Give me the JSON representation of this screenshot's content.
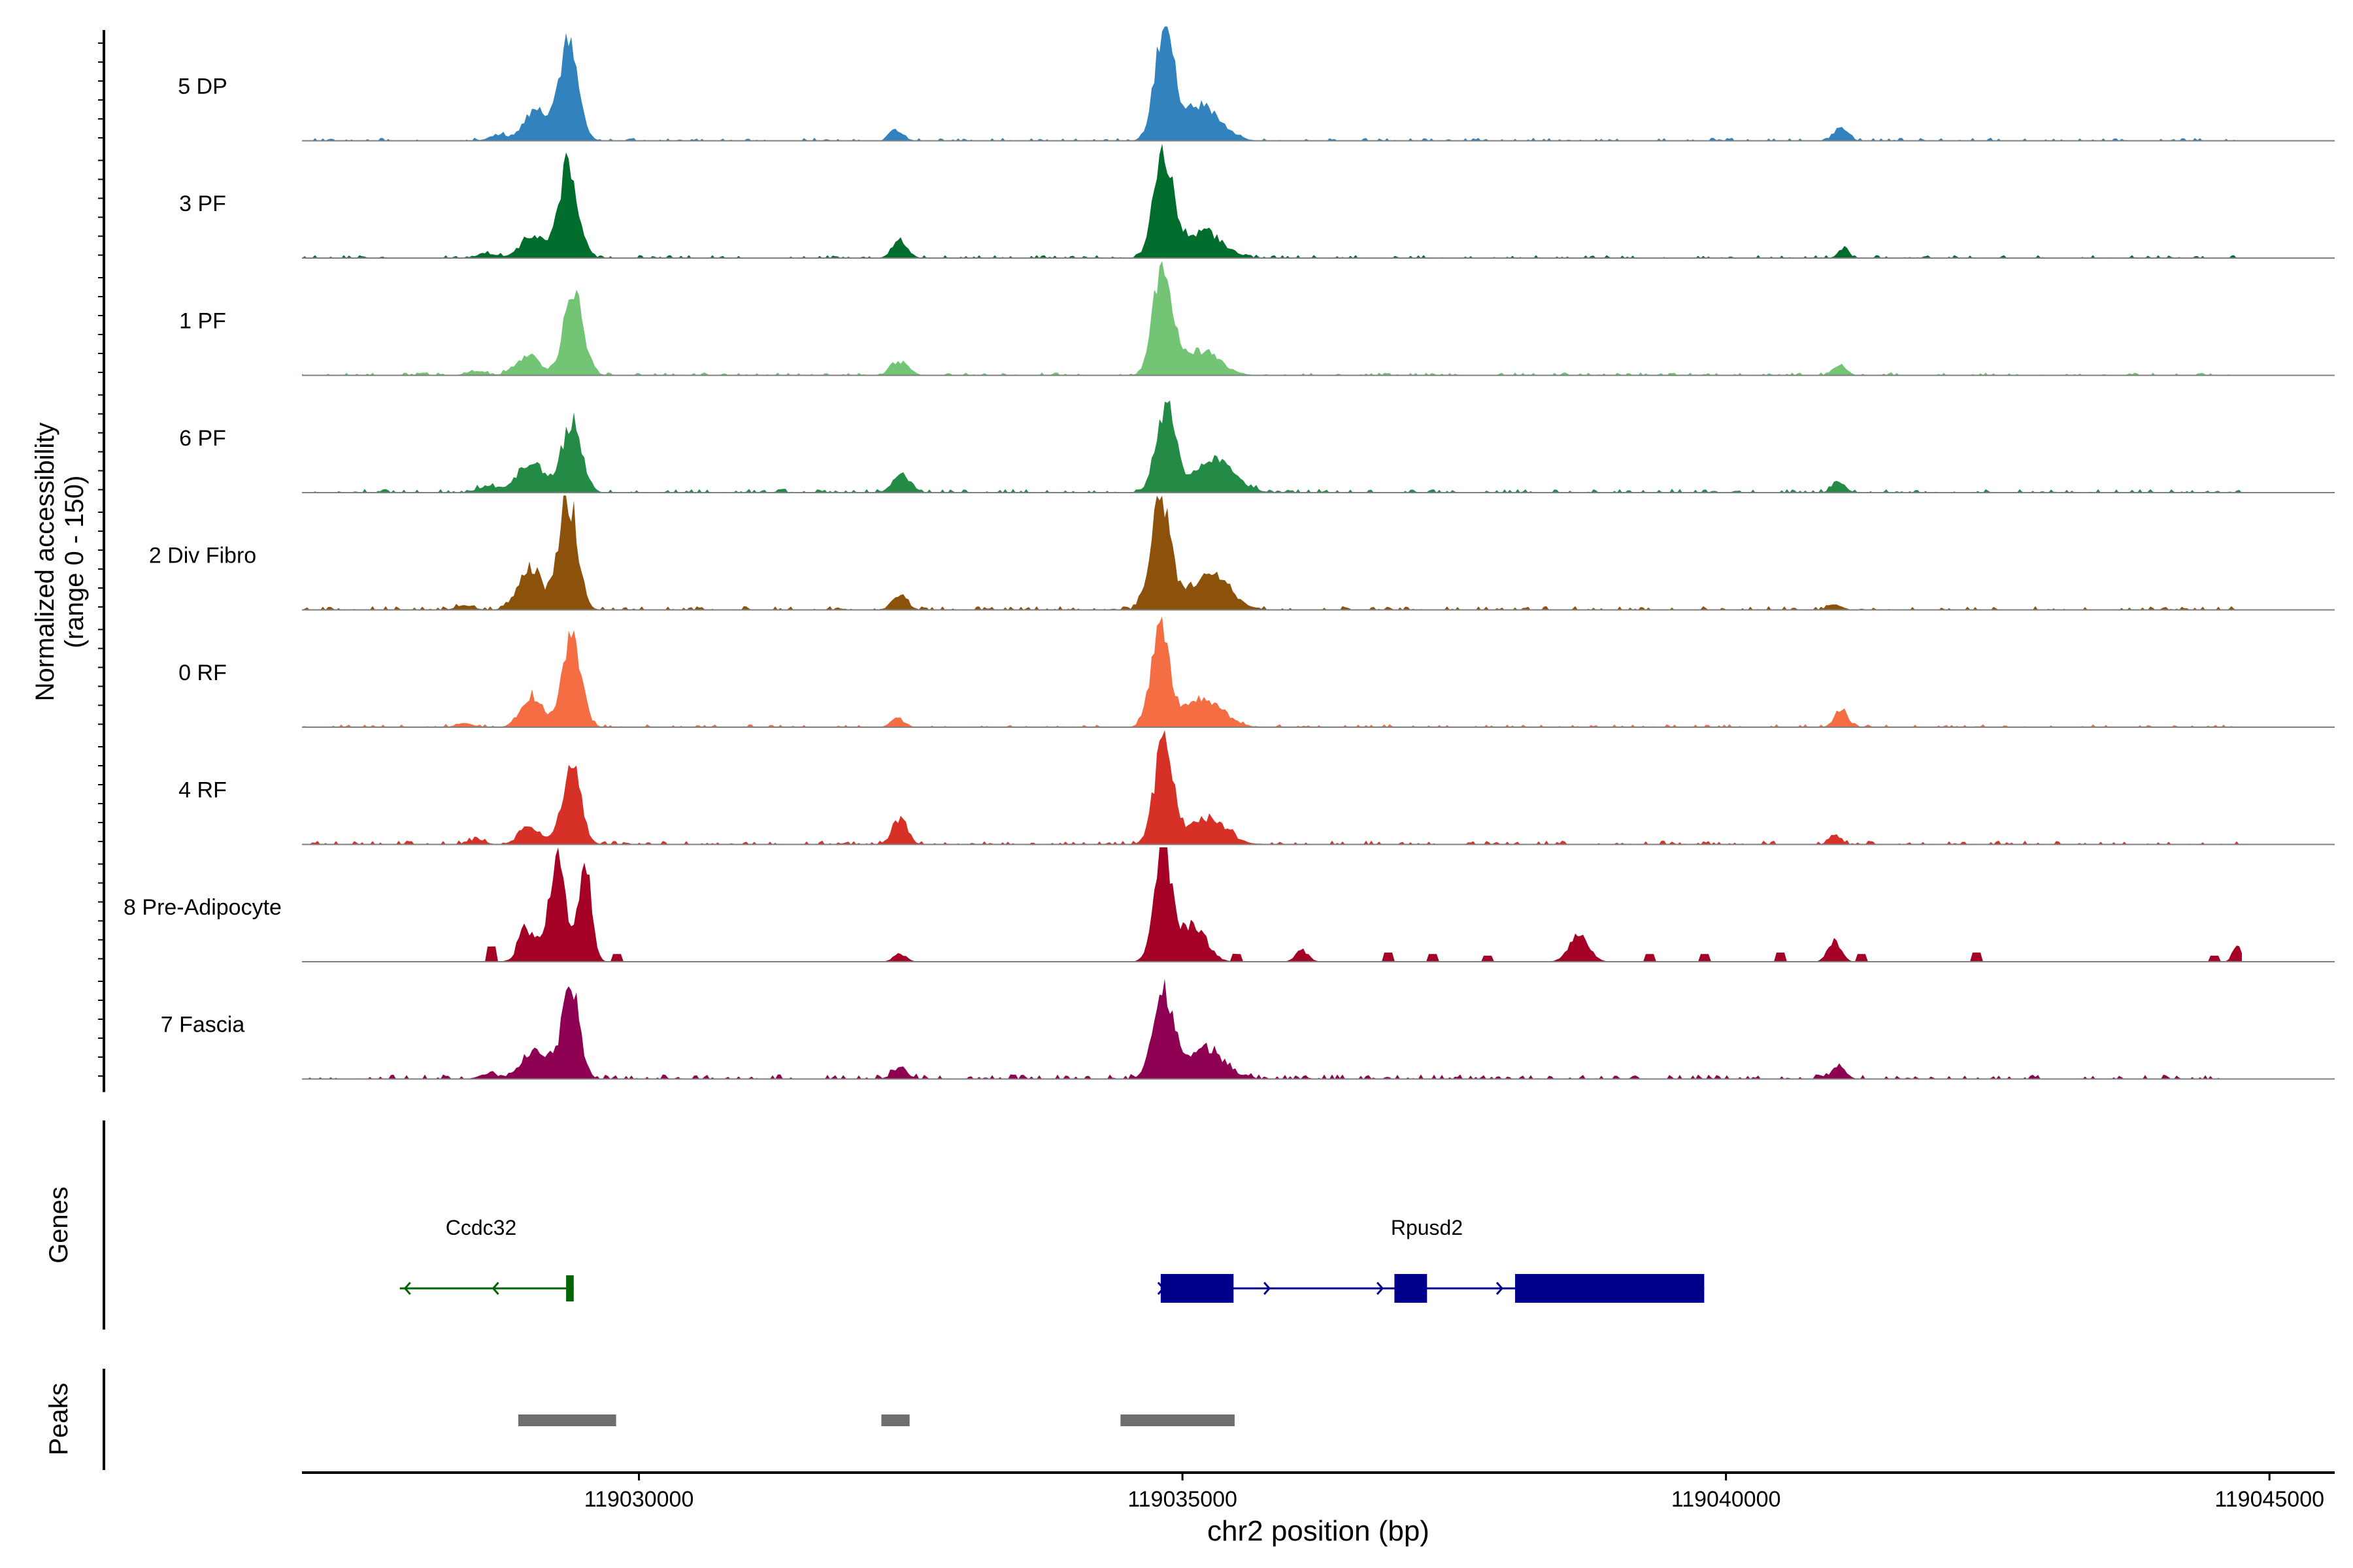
{
  "chart_data": {
    "type": "area",
    "title": "",
    "chromosome": "chr2",
    "xlabel": "chr2 position (bp)",
    "ylabel_line1": "Normalized accessibility",
    "ylabel_line2": "(range 0 - 150)",
    "ylim": [
      0,
      150
    ],
    "xlim": [
      119026900,
      119045600
    ],
    "x_ticks": [
      119030000,
      119035000,
      119040000,
      119045000
    ],
    "x_tick_labels": [
      "119030000",
      "119035000",
      "119040000",
      "119045000"
    ],
    "tracks": [
      {
        "label": "5 DP",
        "color": "#3182BD",
        "peaks": [
          [
            119029350,
            125,
            90
          ],
          [
            119029050,
            42,
            110
          ],
          [
            119034830,
            135,
            85
          ],
          [
            119035150,
            48,
            180
          ],
          [
            119032370,
            14,
            60
          ],
          [
            119041060,
            20,
            60
          ],
          [
            119028700,
            8,
            80
          ]
        ],
        "noise": 4,
        "spikes": []
      },
      {
        "label": "3 PF",
        "color": "#006D2C",
        "peaks": [
          [
            119029350,
            118,
            90
          ],
          [
            119029020,
            28,
            110
          ],
          [
            119034830,
            135,
            90
          ],
          [
            119035200,
            35,
            170
          ],
          [
            119032400,
            22,
            70
          ],
          [
            119041080,
            12,
            50
          ],
          [
            119028600,
            6,
            90
          ]
        ],
        "noise": 4,
        "spikes": []
      },
      {
        "label": "1 PF",
        "color": "#74C476",
        "peaks": [
          [
            119029400,
            108,
            90
          ],
          [
            119028980,
            26,
            110
          ],
          [
            119034820,
            150,
            85
          ],
          [
            119035180,
            32,
            170
          ],
          [
            119032400,
            18,
            80
          ],
          [
            119041050,
            12,
            60
          ],
          [
            119028500,
            5,
            90
          ]
        ],
        "noise": 4,
        "spikes": []
      },
      {
        "label": "6 PF",
        "color": "#238B45",
        "peaks": [
          [
            119029380,
            95,
            90
          ],
          [
            119029000,
            38,
            120
          ],
          [
            119034850,
            115,
            90
          ],
          [
            119035300,
            42,
            180
          ],
          [
            119032420,
            24,
            80
          ],
          [
            119041040,
            14,
            60
          ],
          [
            119028600,
            8,
            90
          ]
        ],
        "noise": 5,
        "spikes": []
      },
      {
        "label": "2 Div Fibro",
        "color": "#8C510A",
        "peaks": [
          [
            119029350,
            148,
            85
          ],
          [
            119029000,
            55,
            110
          ],
          [
            119034800,
            145,
            90
          ],
          [
            119035250,
            48,
            180
          ],
          [
            119032400,
            20,
            70
          ],
          [
            119041000,
            8,
            60
          ],
          [
            119028400,
            6,
            80
          ]
        ],
        "noise": 5,
        "spikes": []
      },
      {
        "label": "0 RF",
        "color": "#F46D43",
        "peaks": [
          [
            119029380,
            125,
            85
          ],
          [
            119029020,
            42,
            100
          ],
          [
            119034800,
            130,
            85
          ],
          [
            119035200,
            38,
            170
          ],
          [
            119032380,
            12,
            60
          ],
          [
            119041060,
            24,
            60
          ],
          [
            119028400,
            5,
            80
          ]
        ],
        "noise": 4,
        "spikes": []
      },
      {
        "label": "4 RF",
        "color": "#D73027",
        "peaks": [
          [
            119029380,
            100,
            85
          ],
          [
            119029000,
            22,
            100
          ],
          [
            119034830,
            135,
            85
          ],
          [
            119035230,
            36,
            170
          ],
          [
            119032400,
            32,
            70
          ],
          [
            119041000,
            14,
            50
          ],
          [
            119028500,
            6,
            80
          ]
        ],
        "noise": 5,
        "spikes": []
      },
      {
        "label": "8 Pre-Adipocyte",
        "color": "#A50026",
        "peaks": [
          [
            119029250,
            148,
            70
          ],
          [
            119029500,
            135,
            60
          ],
          [
            119029000,
            40,
            90
          ],
          [
            119034820,
            150,
            80
          ],
          [
            119035100,
            48,
            120
          ],
          [
            119032400,
            10,
            60
          ],
          [
            119041000,
            28,
            60
          ],
          [
            119038650,
            35,
            90
          ],
          [
            119036100,
            15,
            60
          ],
          [
            119044700,
            22,
            40
          ]
        ],
        "noise": 0,
        "spikes": [
          [
            119028650,
            20
          ],
          [
            119028900,
            12
          ],
          [
            119029800,
            10
          ],
          [
            119035500,
            10
          ],
          [
            119036900,
            12
          ],
          [
            119037300,
            10
          ],
          [
            119037800,
            8
          ],
          [
            119039300,
            10
          ],
          [
            119039800,
            10
          ],
          [
            119040500,
            12
          ],
          [
            119041250,
            10
          ],
          [
            119042300,
            12
          ],
          [
            119044500,
            8
          ]
        ]
      },
      {
        "label": "7 Fascia",
        "color": "#8E0152",
        "peaks": [
          [
            119029370,
            118,
            80
          ],
          [
            119029050,
            36,
            130
          ],
          [
            119034820,
            110,
            90
          ],
          [
            119035200,
            38,
            180
          ],
          [
            119032400,
            14,
            70
          ],
          [
            119041040,
            18,
            60
          ],
          [
            119028600,
            6,
            80
          ]
        ],
        "noise": 6,
        "spikes": []
      }
    ],
    "genes_track_label": "Genes",
    "genes": [
      {
        "name": "Ccdc32",
        "strand": "-",
        "color": "#006400",
        "start": 119027800,
        "end": 119029400,
        "exons": [
          [
            119029330,
            119029400
          ]
        ]
      },
      {
        "name": "Rpusd2",
        "strand": "+",
        "color": "#00008B",
        "start": 119034800,
        "end": 119039800,
        "exons": [
          [
            119034800,
            119035470
          ],
          [
            119036950,
            119037250
          ],
          [
            119038060,
            119039800
          ]
        ]
      }
    ],
    "peaks_track_label": "Peaks",
    "peak_regions": [
      [
        119028890,
        119029790
      ],
      [
        119032230,
        119032490
      ],
      [
        119034430,
        119035480
      ]
    ]
  }
}
